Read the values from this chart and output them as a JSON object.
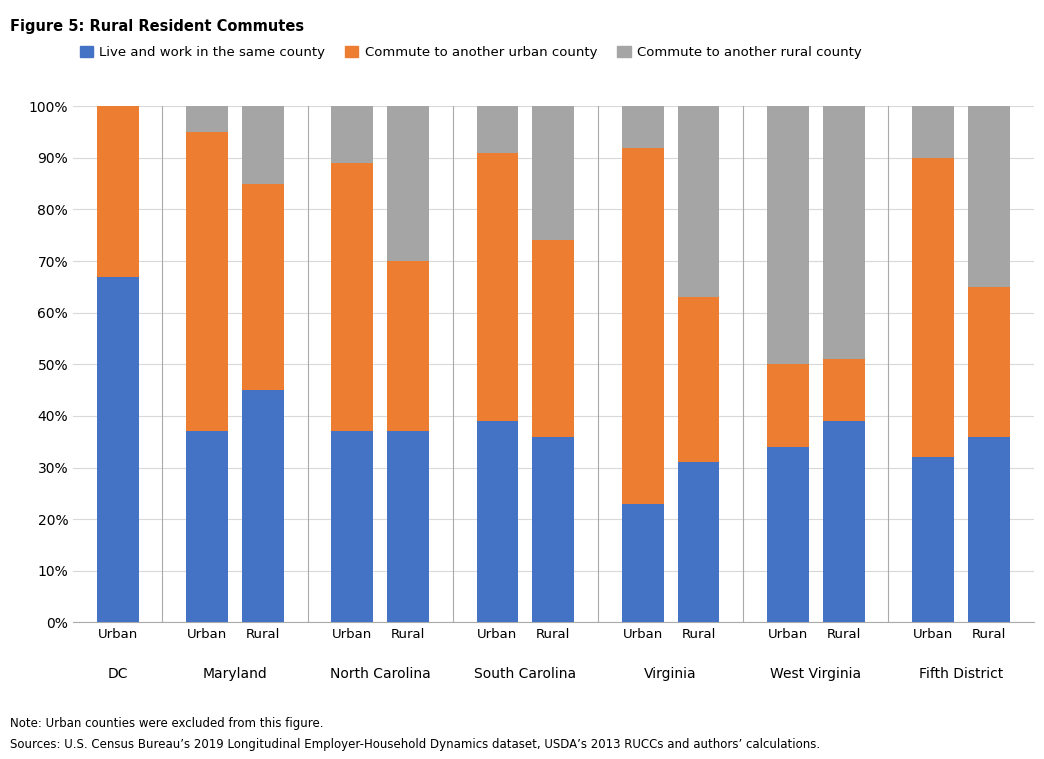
{
  "title": "Figure 5: Rural Resident Commutes",
  "note": "Note: Urban counties were excluded from this figure.",
  "source": "Sources: U.S. Census Bureau’s 2019 Longitudinal Employer-Household Dynamics dataset, USDA’s 2013 RUCCs and authors’ calculations.",
  "legend_labels": [
    "Live and work in the same county",
    "Commute to another urban county",
    "Commute to another rural county"
  ],
  "colors": [
    "#4472C4",
    "#ED7D31",
    "#A5A5A5"
  ],
  "bar_labels_top": [
    "Urban",
    "Urban",
    "Rural",
    "Urban",
    "Rural",
    "Urban",
    "Rural",
    "Urban",
    "Rural",
    "Urban",
    "Rural",
    "Urban",
    "Rural"
  ],
  "group_labels": [
    "DC",
    "Maryland",
    "North Carolina",
    "South Carolina",
    "Virginia",
    "West Virginia",
    "Fifth District"
  ],
  "group_sizes": [
    1,
    2,
    2,
    2,
    2,
    2,
    2
  ],
  "blue_values": [
    67,
    37,
    45,
    37,
    37,
    39,
    36,
    23,
    31,
    34,
    39,
    32,
    36
  ],
  "orange_values": [
    33,
    58,
    40,
    52,
    33,
    52,
    38,
    69,
    32,
    16,
    12,
    58,
    29
  ],
  "gray_values": [
    0,
    5,
    15,
    11,
    30,
    9,
    26,
    8,
    37,
    50,
    49,
    10,
    35
  ],
  "ylim": [
    0,
    100
  ],
  "yticks": [
    0,
    10,
    20,
    30,
    40,
    50,
    60,
    70,
    80,
    90,
    100
  ],
  "ytick_labels": [
    "0%",
    "10%",
    "20%",
    "30%",
    "40%",
    "50%",
    "60%",
    "70%",
    "80%",
    "90%",
    "100%"
  ]
}
